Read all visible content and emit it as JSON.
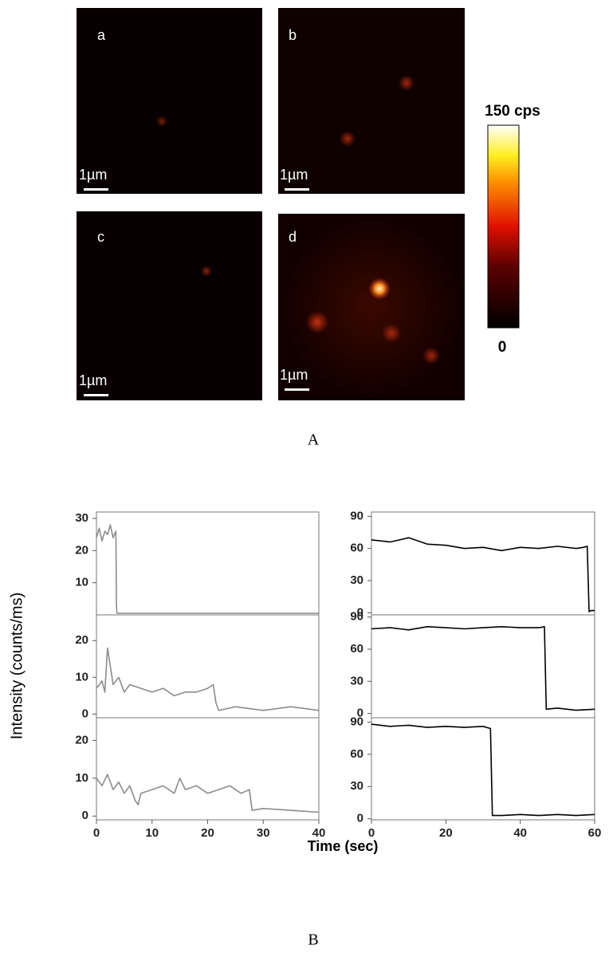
{
  "panel_A": {
    "images": [
      {
        "label": "a",
        "scale_bar": "1µm"
      },
      {
        "label": "b",
        "scale_bar": "1µm"
      },
      {
        "label": "c",
        "scale_bar": "1µm"
      },
      {
        "label": "d",
        "scale_bar": "1µm"
      }
    ],
    "colorbar": {
      "max_label": "150 cps",
      "min_label": "0"
    },
    "caption": "A"
  },
  "panel_B": {
    "y_label": "Intensity (counts/ms)",
    "x_label": "Time (sec)",
    "caption": "B"
  },
  "chart_data": [
    {
      "type": "line",
      "color": "#8c8c8c",
      "xlim": [
        0,
        40
      ],
      "ylim": [
        0,
        32
      ],
      "yticks": [
        10,
        20,
        30
      ],
      "x": [
        0,
        0.5,
        1,
        1.5,
        2,
        2.5,
        3,
        3.5,
        3.6,
        3.7,
        10,
        20,
        30,
        40
      ],
      "values": [
        24,
        27,
        23,
        26,
        25,
        28,
        24,
        26,
        3,
        0.5,
        0.5,
        0.5,
        0.5,
        0.5
      ]
    },
    {
      "type": "line",
      "color": "#8c8c8c",
      "xlim": [
        0,
        40
      ],
      "ylim": [
        -1,
        27
      ],
      "yticks": [
        0,
        10,
        20
      ],
      "x": [
        0,
        1,
        1.5,
        2,
        3,
        4,
        5,
        6,
        8,
        10,
        12,
        14,
        16,
        18,
        20,
        21,
        21.5,
        22,
        25,
        30,
        35,
        40
      ],
      "values": [
        7,
        9,
        6,
        18,
        8,
        10,
        6,
        8,
        7,
        6,
        7,
        5,
        6,
        6,
        7,
        8,
        3,
        1,
        2,
        1,
        2,
        1
      ]
    },
    {
      "type": "line",
      "color": "#8c8c8c",
      "xlim": [
        0,
        40
      ],
      "ylim": [
        -1,
        26
      ],
      "yticks": [
        0,
        10,
        20
      ],
      "xticks": [
        0,
        10,
        20,
        30,
        40
      ],
      "x": [
        0,
        1,
        2,
        3,
        4,
        5,
        6,
        7,
        7.5,
        8,
        10,
        12,
        14,
        15,
        16,
        18,
        20,
        22,
        24,
        26,
        27.5,
        28,
        30,
        35,
        40
      ],
      "values": [
        10,
        8,
        11,
        7,
        9,
        6,
        8,
        4,
        3,
        6,
        7,
        8,
        6,
        10,
        7,
        8,
        6,
        7,
        8,
        6,
        7,
        1.5,
        2,
        1.5,
        1
      ]
    },
    {
      "type": "line",
      "color": "#000000",
      "xlim": [
        0,
        60
      ],
      "ylim": [
        -2,
        94
      ],
      "yticks": [
        0,
        30,
        60,
        90
      ],
      "x": [
        0,
        5,
        10,
        15,
        20,
        25,
        30,
        35,
        40,
        45,
        50,
        55,
        57,
        58,
        58.5,
        59,
        60
      ],
      "values": [
        68,
        66,
        70,
        64,
        63,
        60,
        61,
        58,
        61,
        60,
        62,
        60,
        61,
        62,
        1,
        2,
        2
      ]
    },
    {
      "type": "line",
      "color": "#000000",
      "xlim": [
        0,
        60
      ],
      "ylim": [
        -4,
        92
      ],
      "yticks": [
        0,
        30,
        60,
        90
      ],
      "x": [
        0,
        5,
        10,
        15,
        20,
        25,
        30,
        35,
        40,
        45,
        46.5,
        47,
        50,
        55,
        60
      ],
      "values": [
        79,
        80,
        78,
        81,
        80,
        79,
        80,
        81,
        80,
        80,
        81,
        4,
        5,
        3,
        4
      ]
    },
    {
      "type": "line",
      "color": "#000000",
      "xlim": [
        0,
        60
      ],
      "ylim": [
        -1,
        94
      ],
      "yticks": [
        0,
        30,
        60,
        90
      ],
      "xticks": [
        0,
        20,
        40,
        60
      ],
      "x": [
        0,
        5,
        10,
        15,
        20,
        25,
        30,
        32,
        32.5,
        35,
        40,
        45,
        50,
        55,
        60
      ],
      "values": [
        88,
        86,
        87,
        85,
        86,
        85,
        86,
        84,
        3,
        3,
        4,
        3,
        4,
        3,
        4
      ]
    }
  ]
}
